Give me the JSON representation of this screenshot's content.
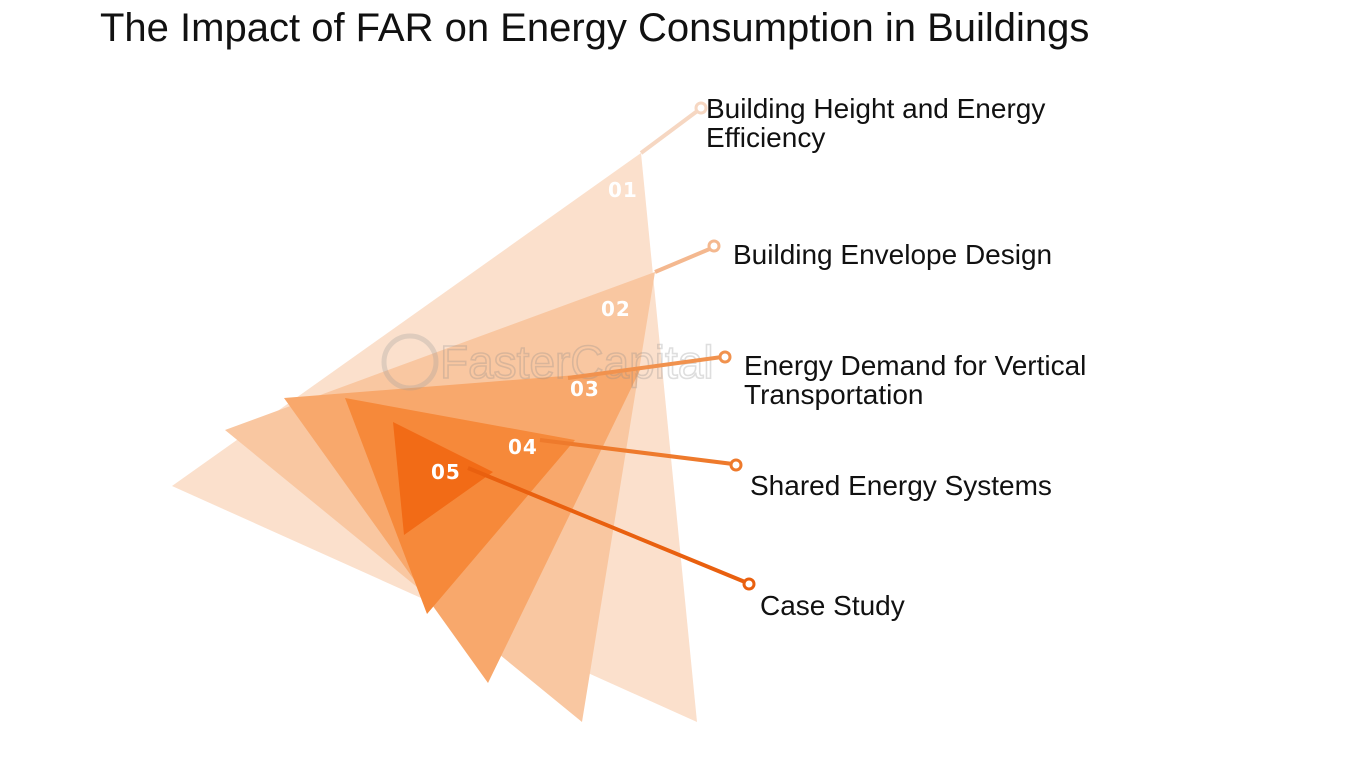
{
  "title": "The Impact of FAR on Energy Consumption in Buildings",
  "colors": {
    "layer_1": "#fbe0cc",
    "layer_2": "#f9c7a1",
    "layer_3": "#f8a86c",
    "layer_4": "#f6893a",
    "layer_5": "#f26b16",
    "connector_1": "#f6d7c2",
    "connector_2": "#f4b88f",
    "connector_3": "#f1924e",
    "connector_4": "#ee7a2c",
    "connector_5": "#e9600f"
  },
  "items": [
    {
      "number": "01",
      "label": "Building Height and Energy Efficiency"
    },
    {
      "number": "02",
      "label": "Building Envelope Design"
    },
    {
      "number": "03",
      "label": "Energy Demand for Vertical Transportation"
    },
    {
      "number": "04",
      "label": "Shared Energy Systems"
    },
    {
      "number": "05",
      "label": "Case Study"
    }
  ],
  "watermark": "FasterCapital"
}
